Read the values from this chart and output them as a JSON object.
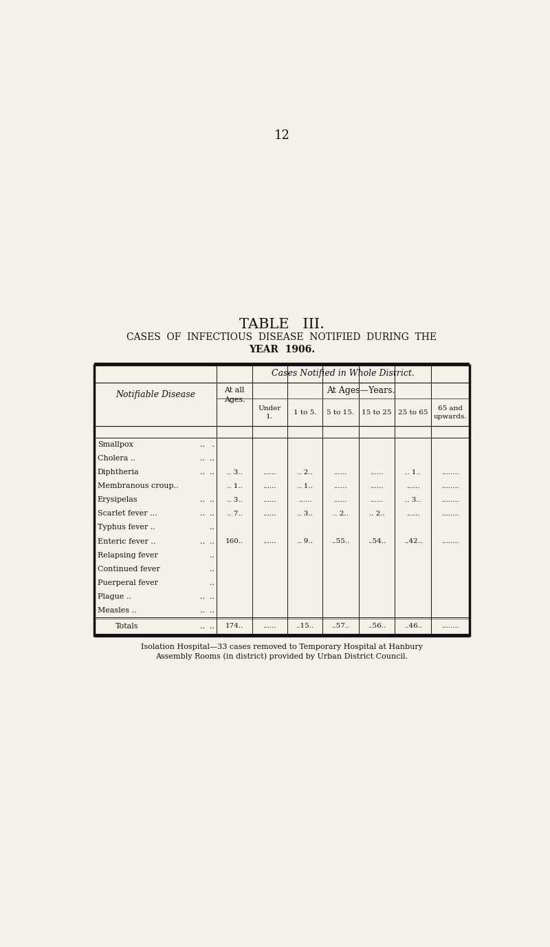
{
  "page_number": "12",
  "title_line1": "TABLE   III.",
  "title_line2": "CASES  OF  INFECTIOUS  DISEASE  NOTIFIED  DURING  THE",
  "title_line3": "YEAR  1906.",
  "section_header": "Cases Notified in Whole District.",
  "col_notifiable": "Notifiable Disease",
  "col_all_ages": "At all\nAges.",
  "col_ages_years": "At Ages—Years.",
  "col_headers": [
    "Under\n1.",
    "1 to 5.",
    "5 to 15.",
    "15 to 25",
    "25 to 65",
    "65 and\nupwards."
  ],
  "diseases": [
    [
      "Smallpox",
      "  ..   ."
    ],
    [
      "Cholera ..",
      "  ..  .."
    ],
    [
      "Diphtheria",
      "  ..  .."
    ],
    [
      "Membranous croup..",
      ""
    ],
    [
      "Erysipelas",
      "  ..  .."
    ],
    [
      "Scarlet fever ...",
      "  ..  .."
    ],
    [
      "Typhus fever ..",
      "  .."
    ],
    [
      "Enteric fever ..",
      "  ..  .."
    ],
    [
      "Relapsing fever",
      "  .."
    ],
    [
      "Continued fever",
      "  .."
    ],
    [
      "Puerperal fever",
      "  .."
    ],
    [
      "Plague ..",
      "  ..  .."
    ],
    [
      "Measles ..",
      "  ..  .."
    ]
  ],
  "data_rows": [
    [
      "",
      "",
      "",
      "",
      "",
      "",
      ""
    ],
    [
      "",
      "",
      "",
      "",
      "",
      "",
      ""
    ],
    [
      ".. 3..",
      "......",
      ".. 2..",
      "......",
      "......",
      ".. 1..",
      "........"
    ],
    [
      ".. 1..",
      "......",
      ".. 1..",
      "......",
      "......",
      "......",
      "........"
    ],
    [
      ".. 3..",
      "......",
      "......",
      "......",
      "......",
      ".. 3..",
      "........"
    ],
    [
      ".. 7..",
      "......",
      ".. 3..",
      ".. 2..",
      ".. 2..",
      "......",
      "........"
    ],
    [
      "",
      "",
      "",
      "",
      "",
      "",
      ""
    ],
    [
      "160..",
      "......",
      ".. 9..",
      "..55..",
      "..54..",
      "..42..",
      "........"
    ],
    [
      "",
      "",
      "",
      "",
      "",
      "",
      ""
    ],
    [
      "",
      "",
      "",
      "",
      "",
      "",
      ""
    ],
    [
      "",
      "",
      "",
      "",
      "",
      "",
      ""
    ],
    [
      "",
      "",
      "",
      "",
      "",
      "",
      ""
    ],
    [
      "",
      "",
      "",
      "",
      "",
      "",
      ""
    ]
  ],
  "totals_data": [
    "174..",
    "......",
    "..15..",
    "..57..",
    "..56..",
    "..46..",
    "........"
  ],
  "footnote_line1": "Isolation Hospital—33 cases removed to Temporary Hospital at Hanbury",
  "footnote_line2": "Assembly Rooms (in district) provided by Urban District Council.",
  "bg_color": "#f5f0e8",
  "text_color": "#111111"
}
